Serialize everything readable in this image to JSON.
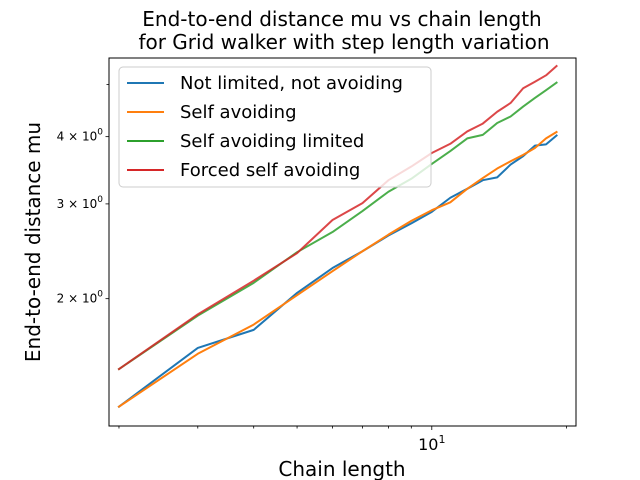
{
  "chart_data": {
    "type": "line",
    "title_lines": [
      "End-to-end distance mu vs chain length",
      "for Grid walker with step length variation"
    ],
    "xlabel": "Chain length",
    "ylabel": "End-to-end distance mu",
    "x_scale": "log",
    "y_scale": "log",
    "xlim": [
      1.9,
      21
    ],
    "ylim": [
      1.16,
      5.6
    ],
    "x_ticks": [
      {
        "value": 10,
        "label": "10"
      }
    ],
    "y_ticks": [
      {
        "value": 2,
        "label": "2 × 10"
      },
      {
        "value": 3,
        "label": "3 × 10"
      },
      {
        "value": 4,
        "label": "4 × 10"
      }
    ],
    "x_minor_ticks": [
      2,
      3,
      4,
      5,
      6,
      7,
      8,
      9,
      20
    ],
    "y_minor_ticks": [
      5
    ],
    "legend_position": "top-left",
    "grid": false,
    "x": [
      2,
      3,
      4,
      5,
      6,
      7,
      8,
      9,
      10,
      11,
      12,
      13,
      14,
      15,
      16,
      17,
      18,
      19
    ],
    "series": [
      {
        "name": "Not limited, not avoiding",
        "color": "#1f77b4",
        "values": [
          1.26,
          1.62,
          1.75,
          2.05,
          2.28,
          2.45,
          2.62,
          2.76,
          2.9,
          3.08,
          3.2,
          3.32,
          3.36,
          3.55,
          3.68,
          3.85,
          3.87,
          4.02
        ]
      },
      {
        "name": "Self avoiding",
        "color": "#ff7f0e",
        "values": [
          1.26,
          1.58,
          1.79,
          2.03,
          2.25,
          2.45,
          2.63,
          2.79,
          2.92,
          3.02,
          3.2,
          3.35,
          3.49,
          3.6,
          3.7,
          3.81,
          3.97,
          4.08
        ]
      },
      {
        "name": "Self avoiding limited",
        "color": "#2ca02c",
        "values": [
          1.48,
          1.86,
          2.14,
          2.44,
          2.66,
          2.91,
          3.16,
          3.34,
          3.56,
          3.76,
          3.97,
          4.03,
          4.24,
          4.36,
          4.55,
          4.72,
          4.88,
          5.04
        ]
      },
      {
        "name": "Forced self avoiding",
        "color": "#d62728",
        "values": [
          1.48,
          1.87,
          2.16,
          2.43,
          2.8,
          3.01,
          3.32,
          3.52,
          3.73,
          3.88,
          4.09,
          4.23,
          4.45,
          4.62,
          4.92,
          5.06,
          5.2,
          5.41
        ]
      }
    ]
  }
}
